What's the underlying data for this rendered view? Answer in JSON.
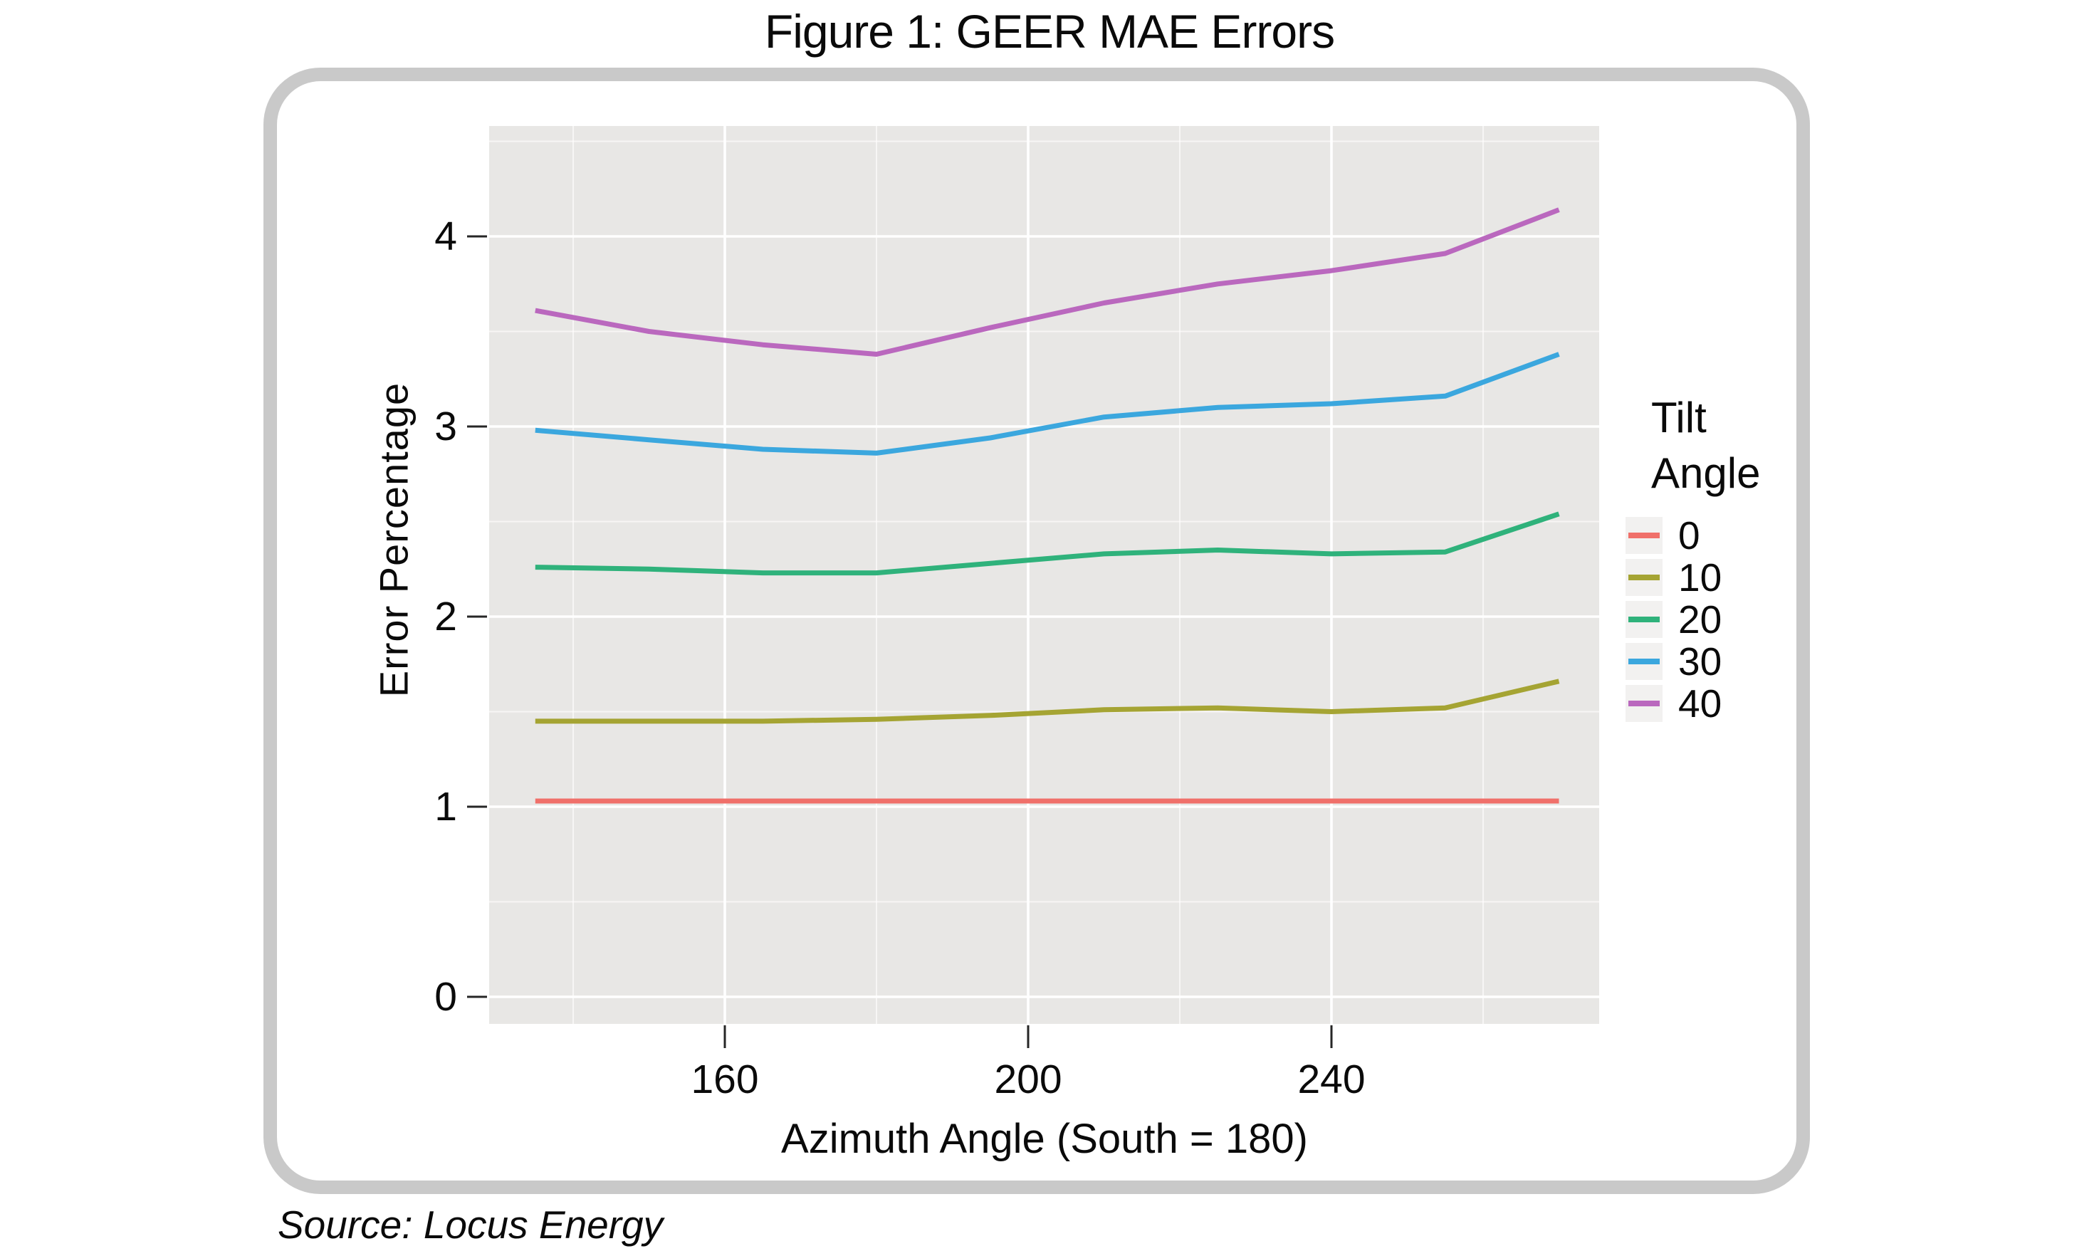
{
  "page": {
    "background": "#ffffff",
    "source_note": "Source: Locus Energy"
  },
  "colors": {
    "frame_border": "#c9c9c9",
    "panel_bg": "#e8e7e5",
    "gridline": "#ffffff",
    "tick": "#262626",
    "text": "#0a0a0a",
    "legend_key_bg": "#f2f1f0"
  },
  "chart_data": {
    "type": "line",
    "title": "Figure 1: GEER MAE Errors",
    "xlabel": "Azimuth Angle (South = 180)",
    "ylabel": "Error Percentage",
    "x": [
      135,
      150,
      165,
      180,
      195,
      210,
      225,
      240,
      255,
      270
    ],
    "series": [
      {
        "name": "0",
        "color": "#f0706a",
        "values": [
          1.03,
          1.03,
          1.03,
          1.03,
          1.03,
          1.03,
          1.03,
          1.03,
          1.03,
          1.03
        ]
      },
      {
        "name": "10",
        "color": "#a5a433",
        "values": [
          1.45,
          1.45,
          1.45,
          1.46,
          1.48,
          1.51,
          1.52,
          1.5,
          1.52,
          1.66
        ]
      },
      {
        "name": "20",
        "color": "#2fb27b",
        "values": [
          2.26,
          2.25,
          2.23,
          2.23,
          2.28,
          2.33,
          2.35,
          2.33,
          2.34,
          2.54
        ]
      },
      {
        "name": "30",
        "color": "#3ba7de",
        "values": [
          2.98,
          2.93,
          2.88,
          2.86,
          2.94,
          3.05,
          3.1,
          3.12,
          3.16,
          3.38
        ]
      },
      {
        "name": "40",
        "color": "#ba68be",
        "values": [
          3.61,
          3.5,
          3.43,
          3.38,
          3.52,
          3.65,
          3.75,
          3.82,
          3.91,
          4.14
        ]
      }
    ],
    "x_ticks": [
      160,
      200,
      240
    ],
    "y_ticks": [
      0,
      1,
      2,
      3,
      4
    ],
    "xlim": [
      128.9,
      275.3
    ],
    "ylim": [
      -0.14,
      4.58
    ],
    "grid": {
      "major": "on",
      "minor": "on",
      "style": "white lines on gray panel"
    },
    "legend": {
      "position": "right",
      "title_lines": [
        "Tilt",
        "Angle"
      ],
      "entries": [
        "0",
        "10",
        "20",
        "30",
        "40"
      ]
    }
  }
}
